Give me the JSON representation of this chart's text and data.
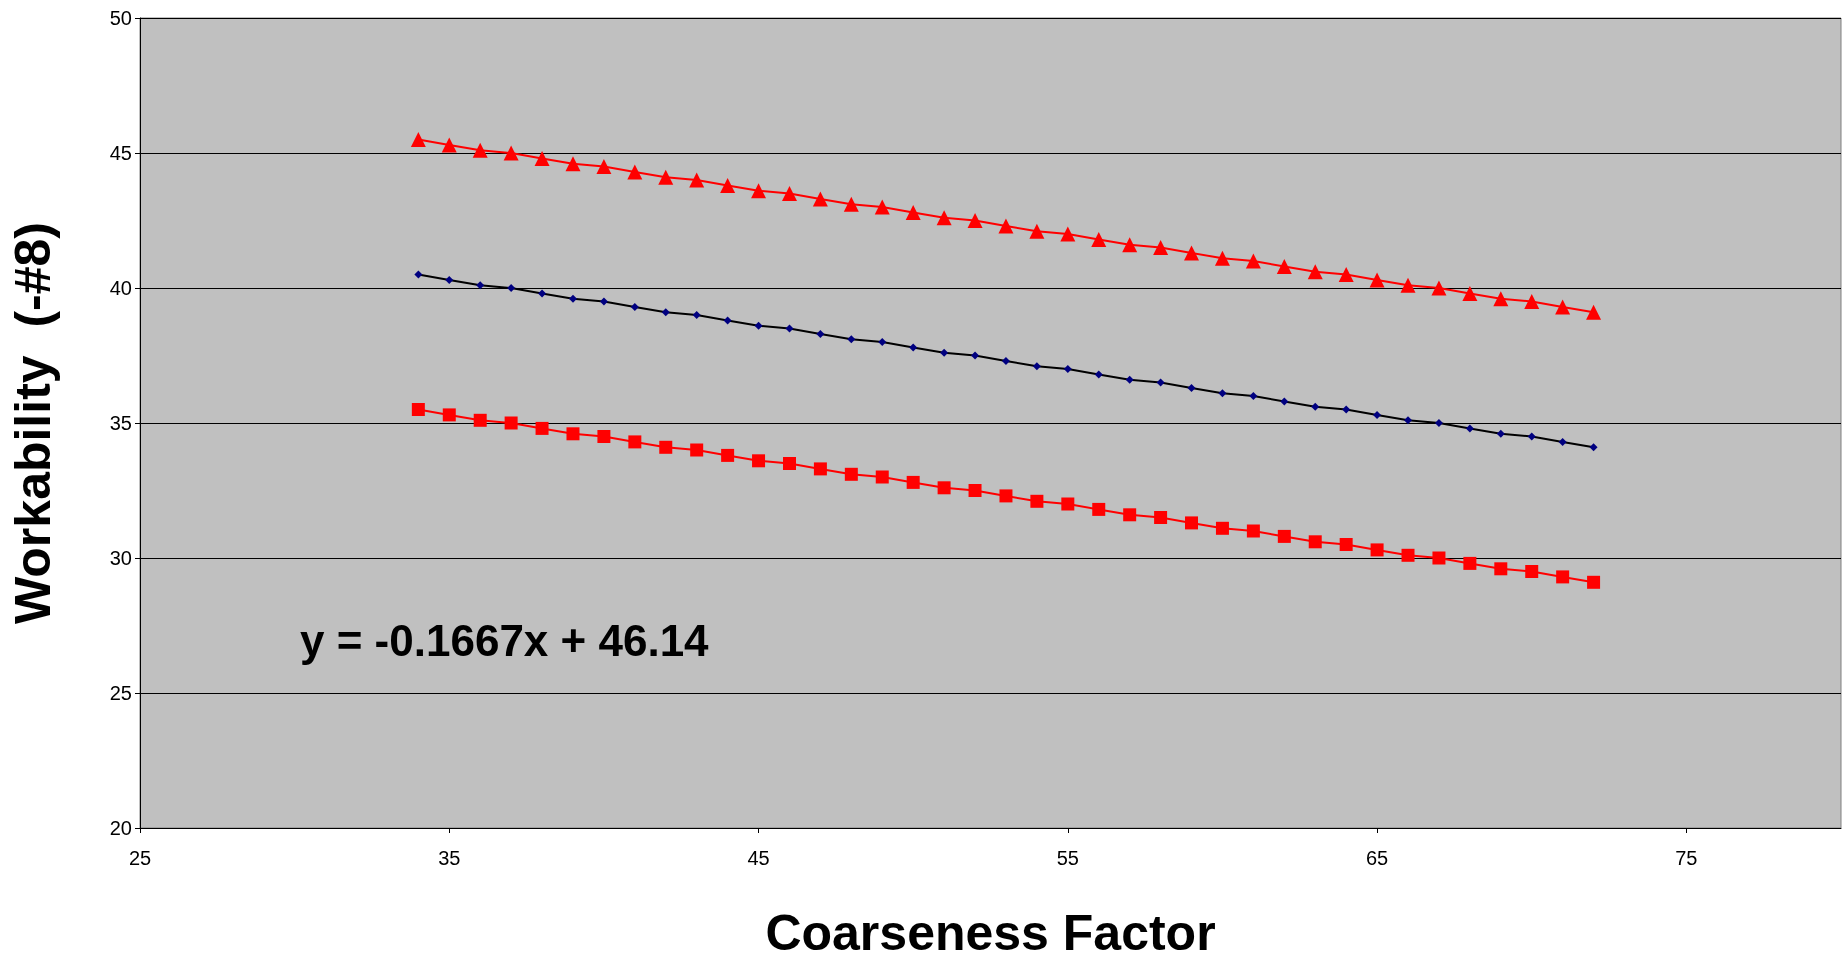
{
  "chart_data": {
    "type": "line",
    "xlabel": "Coarseness Factor",
    "ylabel": "Workability  (-#8)",
    "x": [
      34,
      35,
      36,
      37,
      38,
      39,
      40,
      41,
      42,
      43,
      44,
      45,
      46,
      47,
      48,
      49,
      50,
      51,
      52,
      53,
      54,
      55,
      56,
      57,
      58,
      59,
      60,
      61,
      62,
      63,
      64,
      65,
      66,
      67,
      68,
      69,
      70,
      71,
      72
    ],
    "series": [
      {
        "color": "#ff0000",
        "marker": "triangle",
        "values": [
          45.5,
          45.3,
          45.1,
          45.0,
          44.8,
          44.6,
          44.5,
          44.3,
          44.1,
          44.0,
          43.8,
          43.6,
          43.5,
          43.3,
          43.1,
          43.0,
          42.8,
          42.6,
          42.5,
          42.3,
          42.1,
          42.0,
          41.8,
          41.6,
          41.5,
          41.3,
          41.1,
          41.0,
          40.8,
          40.6,
          40.5,
          40.3,
          40.1,
          40.0,
          39.8,
          39.6,
          39.5,
          39.3,
          39.1
        ]
      },
      {
        "color": "#000080",
        "marker": "diamond",
        "values": [
          40.5,
          40.3,
          40.1,
          40.0,
          39.8,
          39.6,
          39.5,
          39.3,
          39.1,
          39.0,
          38.8,
          38.6,
          38.5,
          38.3,
          38.1,
          38.0,
          37.8,
          37.6,
          37.5,
          37.3,
          37.1,
          37.0,
          36.8,
          36.6,
          36.5,
          36.3,
          36.1,
          36.0,
          35.8,
          35.6,
          35.5,
          35.3,
          35.1,
          35.0,
          34.8,
          34.6,
          34.5,
          34.3,
          34.1
        ]
      },
      {
        "color": "#ff0000",
        "marker": "square",
        "values": [
          35.5,
          35.3,
          35.1,
          35.0,
          34.8,
          34.6,
          34.5,
          34.3,
          34.1,
          34.0,
          33.8,
          33.6,
          33.5,
          33.3,
          33.1,
          33.0,
          32.8,
          32.6,
          32.5,
          32.3,
          32.1,
          32.0,
          31.8,
          31.6,
          31.5,
          31.3,
          31.1,
          31.0,
          30.8,
          30.6,
          30.5,
          30.3,
          30.1,
          30.0,
          29.8,
          29.6,
          29.5,
          29.3,
          29.1
        ]
      }
    ],
    "xlim": [
      25,
      80
    ],
    "xticks": [
      25,
      35,
      45,
      55,
      65,
      75
    ],
    "ylim": [
      20,
      50
    ],
    "yticks": [
      20,
      25,
      30,
      35,
      40,
      45,
      50
    ],
    "grid": "y",
    "annotations": [
      {
        "text": "y = -0.1667x + 46.14"
      }
    ]
  }
}
